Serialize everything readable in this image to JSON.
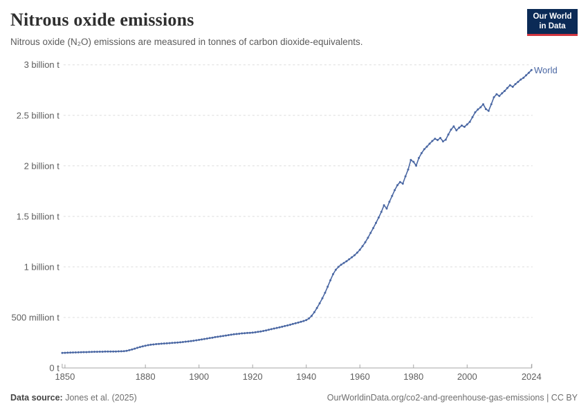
{
  "header": {
    "title": "Nitrous oxide emissions",
    "subtitle": "Nitrous oxide (N₂O) emissions are measured in tonnes of carbon dioxide-equivalents."
  },
  "logo": {
    "line1": "Our World",
    "line2": "in Data",
    "bg_color": "#0b2a56",
    "accent_color": "#d1353f"
  },
  "footer": {
    "source_label": "Data source:",
    "source_value": "Jones et al. (2025)",
    "link_text": "OurWorldinData.org/co2-and-greenhouse-gas-emissions | CC BY"
  },
  "chart_data": {
    "type": "line",
    "title": "Nitrous oxide emissions",
    "xlabel": "",
    "ylabel": "tonnes of CO₂-equivalents",
    "xlim": [
      1850,
      2024
    ],
    "ylim": [
      0,
      3000000000
    ],
    "grid": "horizontal-dashed",
    "legend_position": "end-of-line",
    "colors": {
      "line": "#4a67a3",
      "grid": "#dcdcdc",
      "axis": "#a5a5a5",
      "tick_text": "#5e5e5e"
    },
    "yticks": [
      {
        "value": 0.0,
        "label": "0 t"
      },
      {
        "value": 0.5,
        "label": "500 million t"
      },
      {
        "value": 1.0,
        "label": "1 billion t"
      },
      {
        "value": 1.5,
        "label": "1.5 billion t"
      },
      {
        "value": 2.0,
        "label": "2 billion t"
      },
      {
        "value": 2.5,
        "label": "2.5 billion t"
      },
      {
        "value": 3.0,
        "label": "3 billion t"
      }
    ],
    "xticks": [
      {
        "value": 1850,
        "label": "1850"
      },
      {
        "value": 1880,
        "label": "1880"
      },
      {
        "value": 1900,
        "label": "1900"
      },
      {
        "value": 1920,
        "label": "1920"
      },
      {
        "value": 1940,
        "label": "1940"
      },
      {
        "value": 1960,
        "label": "1960"
      },
      {
        "value": 1980,
        "label": "1980"
      },
      {
        "value": 2000,
        "label": "2000"
      },
      {
        "value": 2024,
        "label": "2024"
      }
    ],
    "unit_note": "values_in_billion_tonnes_CO2e",
    "series": [
      {
        "name": "World",
        "color": "#4a67a3",
        "years": [
          1849,
          1850,
          1851,
          1852,
          1853,
          1854,
          1855,
          1856,
          1857,
          1858,
          1859,
          1860,
          1861,
          1862,
          1863,
          1864,
          1865,
          1866,
          1867,
          1868,
          1869,
          1870,
          1871,
          1872,
          1873,
          1874,
          1875,
          1876,
          1877,
          1878,
          1879,
          1880,
          1881,
          1882,
          1883,
          1884,
          1885,
          1886,
          1887,
          1888,
          1889,
          1890,
          1891,
          1892,
          1893,
          1894,
          1895,
          1896,
          1897,
          1898,
          1899,
          1900,
          1901,
          1902,
          1903,
          1904,
          1905,
          1906,
          1907,
          1908,
          1909,
          1910,
          1911,
          1912,
          1913,
          1914,
          1915,
          1916,
          1917,
          1918,
          1919,
          1920,
          1921,
          1922,
          1923,
          1924,
          1925,
          1926,
          1927,
          1928,
          1929,
          1930,
          1931,
          1932,
          1933,
          1934,
          1935,
          1936,
          1937,
          1938,
          1939,
          1940,
          1941,
          1942,
          1943,
          1944,
          1945,
          1946,
          1947,
          1948,
          1949,
          1950,
          1951,
          1952,
          1953,
          1954,
          1955,
          1956,
          1957,
          1958,
          1959,
          1960,
          1961,
          1962,
          1963,
          1964,
          1965,
          1966,
          1967,
          1968,
          1969,
          1970,
          1971,
          1972,
          1973,
          1974,
          1975,
          1976,
          1977,
          1978,
          1979,
          1980,
          1981,
          1982,
          1983,
          1984,
          1985,
          1986,
          1987,
          1988,
          1989,
          1990,
          1991,
          1992,
          1993,
          1994,
          1995,
          1996,
          1997,
          1998,
          1999,
          2000,
          2001,
          2002,
          2003,
          2004,
          2005,
          2006,
          2007,
          2008,
          2009,
          2010,
          2011,
          2012,
          2013,
          2014,
          2015,
          2016,
          2017,
          2018,
          2019,
          2020,
          2021,
          2022,
          2023,
          2024
        ],
        "values": [
          0.149,
          0.15,
          0.151,
          0.152,
          0.153,
          0.154,
          0.155,
          0.156,
          0.157,
          0.157,
          0.158,
          0.159,
          0.16,
          0.16,
          0.161,
          0.161,
          0.162,
          0.162,
          0.162,
          0.163,
          0.163,
          0.164,
          0.165,
          0.166,
          0.17,
          0.176,
          0.183,
          0.191,
          0.199,
          0.207,
          0.214,
          0.22,
          0.226,
          0.23,
          0.233,
          0.236,
          0.238,
          0.24,
          0.242,
          0.244,
          0.246,
          0.248,
          0.25,
          0.252,
          0.254,
          0.257,
          0.26,
          0.263,
          0.266,
          0.27,
          0.274,
          0.278,
          0.282,
          0.287,
          0.291,
          0.296,
          0.3,
          0.305,
          0.309,
          0.313,
          0.317,
          0.321,
          0.325,
          0.329,
          0.333,
          0.336,
          0.339,
          0.342,
          0.344,
          0.346,
          0.348,
          0.35,
          0.353,
          0.357,
          0.361,
          0.366,
          0.372,
          0.378,
          0.384,
          0.39,
          0.396,
          0.402,
          0.408,
          0.415,
          0.421,
          0.428,
          0.435,
          0.442,
          0.449,
          0.457,
          0.465,
          0.474,
          0.49,
          0.516,
          0.552,
          0.594,
          0.64,
          0.69,
          0.744,
          0.804,
          0.868,
          0.928,
          0.972,
          1.0,
          1.021,
          1.039,
          1.056,
          1.075,
          1.095,
          1.116,
          1.141,
          1.17,
          1.205,
          1.244,
          1.289,
          1.336,
          1.385,
          1.436,
          1.489,
          1.545,
          1.61,
          1.578,
          1.644,
          1.702,
          1.76,
          1.809,
          1.84,
          1.824,
          1.896,
          1.964,
          2.058,
          2.04,
          2.002,
          2.078,
          2.126,
          2.164,
          2.19,
          2.219,
          2.246,
          2.268,
          2.255,
          2.276,
          2.242,
          2.259,
          2.31,
          2.359,
          2.39,
          2.352,
          2.378,
          2.399,
          2.386,
          2.41,
          2.436,
          2.482,
          2.53,
          2.558,
          2.58,
          2.61,
          2.562,
          2.544,
          2.61,
          2.679,
          2.709,
          2.691,
          2.718,
          2.741,
          2.77,
          2.798,
          2.782,
          2.809,
          2.831,
          2.854,
          2.871,
          2.896,
          2.921,
          2.948
        ]
      }
    ]
  }
}
